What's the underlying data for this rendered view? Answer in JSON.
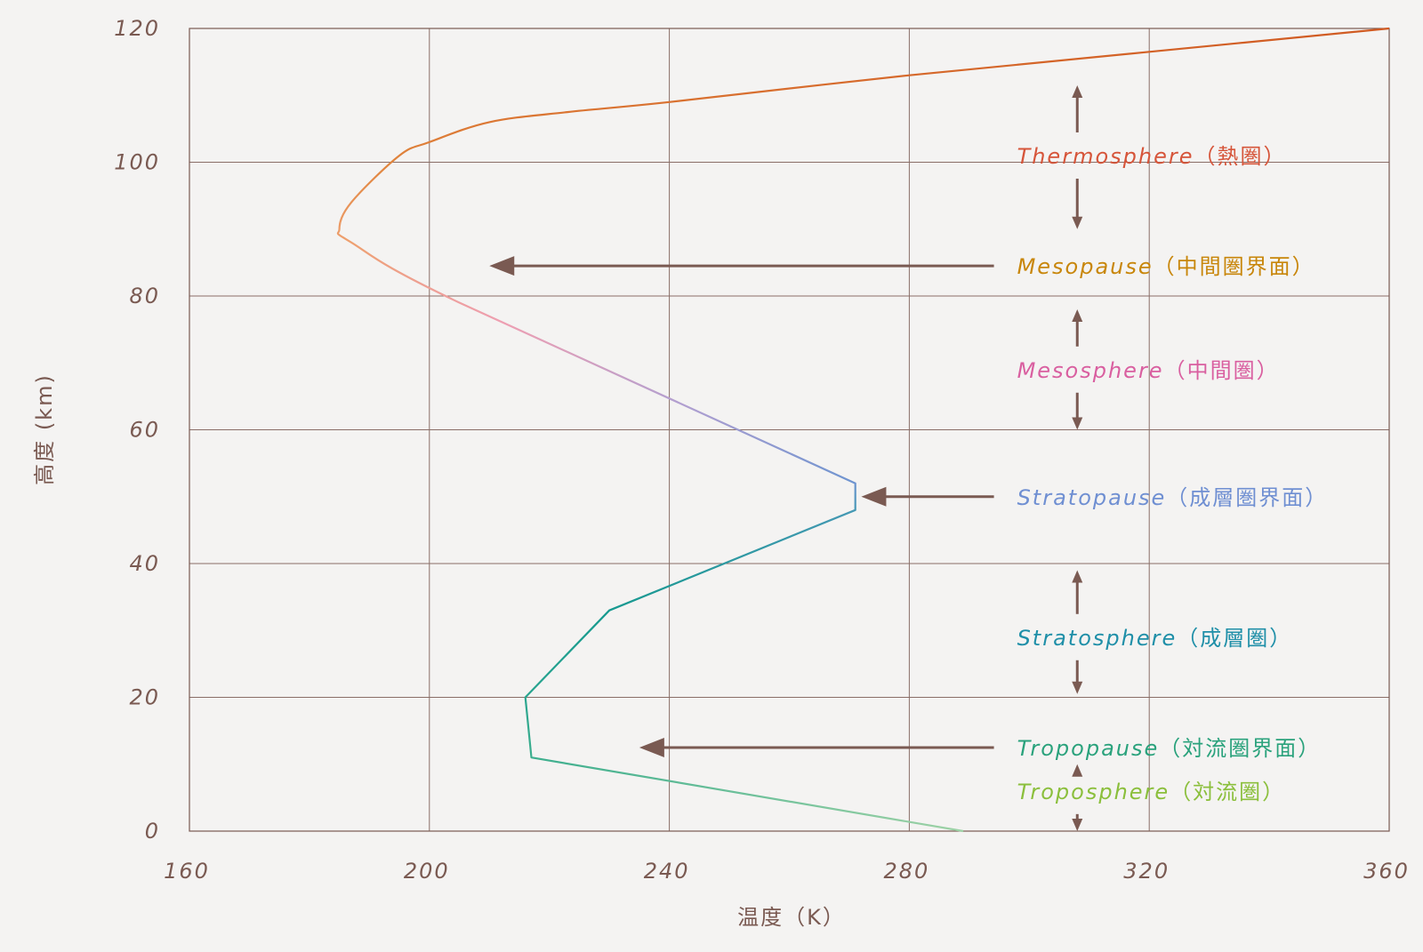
{
  "chart_data": {
    "type": "line",
    "xlabel": "温度（K）",
    "ylabel": "高度 (km)",
    "xlim": [
      160,
      360
    ],
    "ylim": [
      0,
      120
    ],
    "x_ticks": [
      "160",
      "200",
      "240",
      "280",
      "320",
      "360"
    ],
    "y_ticks": [
      "0",
      "20",
      "40",
      "60",
      "80",
      "100",
      "120"
    ],
    "grid": true,
    "series": [
      {
        "points": [
          {
            "x": 289,
            "y": 0
          },
          {
            "x": 217,
            "y": 11
          },
          {
            "x": 216,
            "y": 20
          },
          {
            "x": 230,
            "y": 33
          },
          {
            "x": 271,
            "y": 48
          },
          {
            "x": 271,
            "y": 52
          },
          {
            "x": 205,
            "y": 79
          },
          {
            "x": 187,
            "y": 88
          },
          {
            "x": 185,
            "y": 90
          },
          {
            "x": 187,
            "y": 94
          },
          {
            "x": 195,
            "y": 101
          },
          {
            "x": 200,
            "y": 103
          },
          {
            "x": 210,
            "y": 106
          },
          {
            "x": 223,
            "y": 107.5
          },
          {
            "x": 240,
            "y": 109
          },
          {
            "x": 280,
            "y": 113
          },
          {
            "x": 320,
            "y": 116.5
          },
          {
            "x": 360,
            "y": 120
          }
        ],
        "gradient_stops": [
          {
            "y": 0,
            "color": "#9ed2a6"
          },
          {
            "y": 11,
            "color": "#3dae8e"
          },
          {
            "y": 20,
            "color": "#2aa58f"
          },
          {
            "y": 33,
            "color": "#16998f"
          },
          {
            "y": 48,
            "color": "#4598b4"
          },
          {
            "y": 52,
            "color": "#6e94d0"
          },
          {
            "y": 64,
            "color": "#b29fd0"
          },
          {
            "y": 76,
            "color": "#ee9fb2"
          },
          {
            "y": 88,
            "color": "#eea070"
          },
          {
            "y": 100,
            "color": "#e0843c"
          },
          {
            "y": 120,
            "color": "#d05a22"
          }
        ]
      }
    ],
    "annotations": [
      {
        "name": "thermosphere",
        "latin": "Thermosphere",
        "cjk": "（熱圏）",
        "y": 101,
        "color": "#d6553a",
        "type": "range",
        "arrow_top": 111.5,
        "arrow_bottom": 90
      },
      {
        "name": "mesopause",
        "latin": "Mesopause",
        "cjk": "（中間圏界面）",
        "y": 84.5,
        "color": "#c8860a",
        "type": "pointer",
        "arrow_from_x": 295,
        "arrow_to_x": 210
      },
      {
        "name": "mesosphere",
        "latin": "Mesosphere",
        "cjk": "（中間圏）",
        "y": 69,
        "color": "#d95fa0",
        "type": "range",
        "arrow_top": 78,
        "arrow_bottom": 60
      },
      {
        "name": "stratopause",
        "latin": "Stratopause",
        "cjk": "（成層圏界面）",
        "y": 50,
        "color": "#6f8fd2",
        "type": "pointer",
        "arrow_from_x": 295,
        "arrow_to_x": 272
      },
      {
        "name": "stratosphere",
        "latin": "Stratosphere",
        "cjk": "（成層圏）",
        "y": 29,
        "color": "#1f8fa8",
        "type": "range",
        "arrow_top": 39,
        "arrow_bottom": 20.5
      },
      {
        "name": "tropopause",
        "latin": "Tropopause",
        "cjk": "（対流圏界面）",
        "y": 12.5,
        "color": "#2aa27c",
        "type": "pointer",
        "arrow_from_x": 295,
        "arrow_to_x": 235
      },
      {
        "name": "troposphere",
        "latin": "Troposphere",
        "cjk": "（対流圏）",
        "y": 6,
        "color": "#8bbf3c",
        "type": "range",
        "arrow_top": 10,
        "arrow_bottom": 0
      }
    ],
    "colors": {
      "axis": "#7a5a52",
      "grid": "#8a6e67",
      "arrow": "#7a5a52",
      "background": "#f4f3f2"
    }
  }
}
